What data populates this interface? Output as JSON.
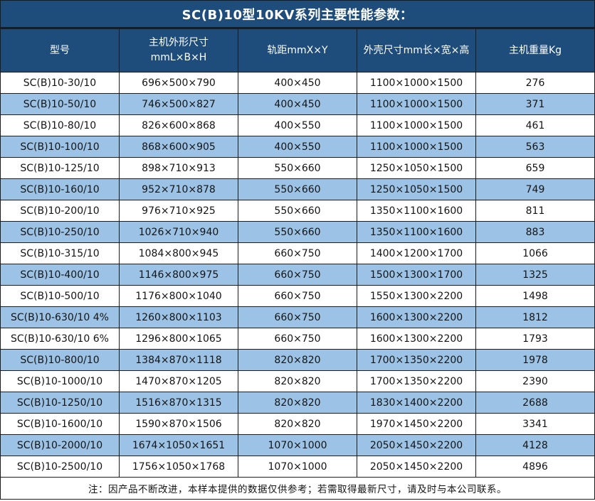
{
  "title": "SC(B)10型10KV系列主要性能参数：",
  "table": {
    "headers": [
      {
        "label": "型号"
      },
      {
        "label": "主机外形尺寸",
        "sublabel": "mmL×B×H"
      },
      {
        "label": "轨距mmX×Y"
      },
      {
        "label": "外壳尺寸mm长×宽×高"
      },
      {
        "label": "主机重量Kg"
      }
    ],
    "rows": [
      [
        "SC(B)10-30/10",
        "696×500×790",
        "400×450",
        "1100×1000×1500",
        "276"
      ],
      [
        "SC(B)10-50/10",
        "746×500×827",
        "400×450",
        "1100×1000×1500",
        "371"
      ],
      [
        "SC(B)10-80/10",
        "826×600×868",
        "400×550",
        "1100×1000×1500",
        "461"
      ],
      [
        "SC(B)10-100/10",
        "868×600×905",
        "400×550",
        "1100×1000×1500",
        "563"
      ],
      [
        "SC(B)10-125/10",
        "898×710×913",
        "550×660",
        "1250×1050×1500",
        "659"
      ],
      [
        "SC(B)10-160/10",
        "952×710×878",
        "550×660",
        "1250×1050×1500",
        "749"
      ],
      [
        "SC(B)10-200/10",
        "976×710×925",
        "550×660",
        "1350×1100×1600",
        "811"
      ],
      [
        "SC(B)10-250/10",
        "1026×710×940",
        "550×660",
        "1350×1100×1600",
        "883"
      ],
      [
        "SC(B)10-315/10",
        "1084×800×945",
        "660×750",
        "1400×1200×1700",
        "1066"
      ],
      [
        "SC(B)10-400/10",
        "1146×800×975",
        "660×750",
        "1500×1300×1700",
        "1325"
      ],
      [
        "SC(B)10-500/10",
        "1176×800×1040",
        "660×750",
        "1550×1300×2200",
        "1498"
      ],
      [
        "SC(B)10-630/10 4%",
        "1260×800×1103",
        "660×750",
        "1600×1300×2200",
        "1812"
      ],
      [
        "SC(B)10-630/10 6%",
        "1296×800×1065",
        "660×750",
        "1600×1300×2200",
        "1793"
      ],
      [
        "SC(B)10-800/10",
        "1384×870×1118",
        "820×820",
        "1700×1350×2200",
        "1978"
      ],
      [
        "SC(B)10-1000/10",
        "1470×870×1205",
        "820×820",
        "1700×1350×2200",
        "2390"
      ],
      [
        "SC(B)10-1250/10",
        "1516×870×1315",
        "820×820",
        "1830×1400×2200",
        "2688"
      ],
      [
        "SC(B)10-1600/10",
        "1590×870×1506",
        "820×820",
        "1970×1450×2200",
        "3341"
      ],
      [
        "SC(B)10-2000/10",
        "1674×1050×1651",
        "1070×1000",
        "2050×1450×2200",
        "4128"
      ],
      [
        "SC(B)10-2500/10",
        "1756×1050×1768",
        "1070×1000",
        "2050×1450×2200",
        "4896"
      ]
    ],
    "footer_note": "注：因产品不断改进，本样本提供的数据仅供参考；若需取得最新尺寸，请及时与本公司联系。"
  },
  "colors": {
    "header_bg": "#1e4d7b",
    "row_alt_bg": "#9cc3e6",
    "row_bg": "#ffffff",
    "border": "#1c1c1c",
    "header_text": "#ffffff",
    "body_text": "#141414"
  }
}
